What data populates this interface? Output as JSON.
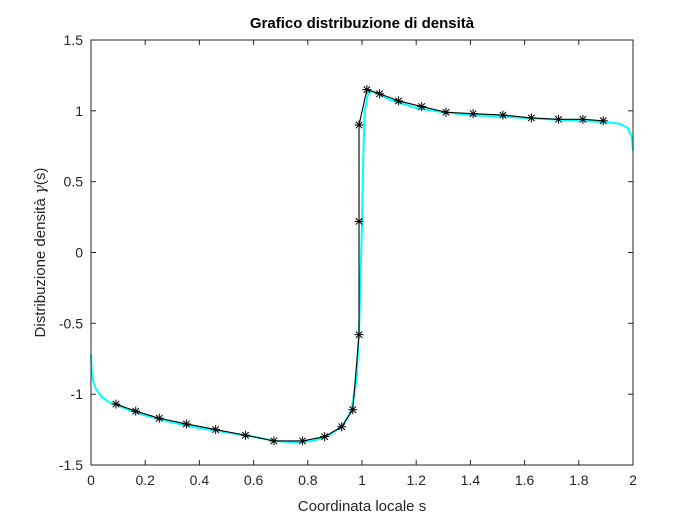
{
  "chart_data": {
    "type": "line",
    "title": "Grafico distribuzione di densità",
    "xlabel": "Coordinata locale s",
    "ylabel_main": "Distribuzione densità ",
    "ylabel_gamma": "γ",
    "ylabel_tail": "(s)",
    "xlim": [
      0,
      2
    ],
    "ylim": [
      -1.5,
      1.5
    ],
    "grid": false,
    "legend": "none",
    "x_ticks": [
      "0",
      "0.2",
      "0.4",
      "0.6",
      "0.8",
      "1",
      "1.2",
      "1.4",
      "1.6",
      "1.8",
      "2"
    ],
    "y_ticks": [
      "-1.5",
      "-1",
      "-0.5",
      "0",
      "0.5",
      "1",
      "1.5"
    ],
    "series": [
      {
        "color": "#00FFFF",
        "line": "solid",
        "marker": "none",
        "x": [
          0.0,
          0.003,
          0.01,
          0.02,
          0.04,
          0.07,
          0.1,
          0.15,
          0.2,
          0.3,
          0.4,
          0.5,
          0.6,
          0.68,
          0.75,
          0.82,
          0.88,
          0.93,
          0.96,
          0.98,
          0.99,
          1.0,
          1.005,
          1.01,
          1.02,
          1.03,
          1.05,
          1.1,
          1.2,
          1.3,
          1.4,
          1.5,
          1.6,
          1.7,
          1.8,
          1.9,
          1.95,
          1.98,
          1.995,
          2.0
        ],
        "y": [
          -0.72,
          -0.85,
          -0.92,
          -0.97,
          -1.02,
          -1.06,
          -1.08,
          -1.12,
          -1.15,
          -1.2,
          -1.24,
          -1.27,
          -1.3,
          -1.33,
          -1.34,
          -1.33,
          -1.29,
          -1.22,
          -1.12,
          -0.9,
          -0.5,
          0.2,
          0.7,
          1.0,
          1.1,
          1.14,
          1.13,
          1.08,
          1.02,
          0.99,
          0.97,
          0.96,
          0.95,
          0.94,
          0.93,
          0.92,
          0.91,
          0.88,
          0.82,
          0.72
        ]
      },
      {
        "color": "#000000",
        "line": "solid",
        "marker": "*",
        "x": [
          0.092,
          0.165,
          0.252,
          0.352,
          0.46,
          0.57,
          0.675,
          0.78,
          0.862,
          0.925,
          0.966,
          0.989,
          0.989,
          0.989,
          1.018,
          1.065,
          1.135,
          1.22,
          1.31,
          1.41,
          1.52,
          1.625,
          1.725,
          1.815,
          1.89
        ],
        "y": [
          -1.07,
          -1.12,
          -1.17,
          -1.21,
          -1.25,
          -1.29,
          -1.33,
          -1.33,
          -1.3,
          -1.23,
          -1.11,
          -0.58,
          0.22,
          0.9,
          1.15,
          1.12,
          1.07,
          1.03,
          0.99,
          0.98,
          0.97,
          0.95,
          0.94,
          0.94,
          0.93
        ]
      }
    ]
  }
}
